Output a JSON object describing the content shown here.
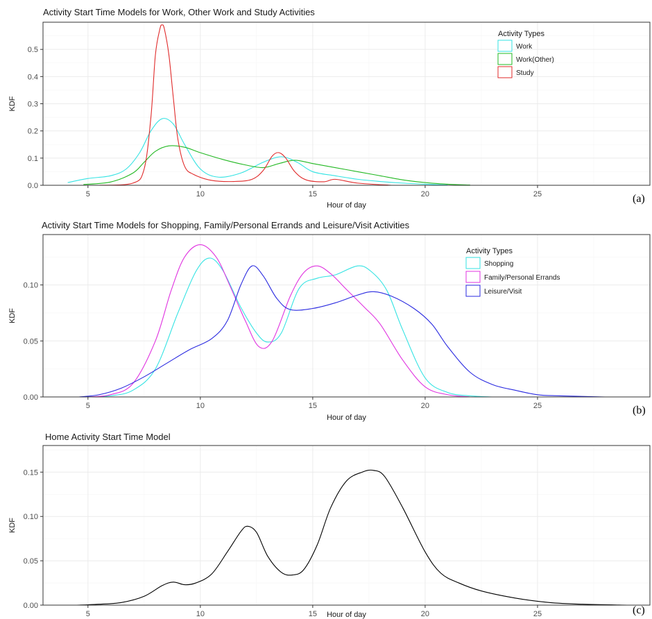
{
  "chart_data": [
    {
      "type": "line",
      "panel_tag": "(a)",
      "title": "Activity Start Time Models for Work, Other Work and Study Activities",
      "xlabel": "Hour of day",
      "ylabel": "KDF",
      "xlim": [
        3,
        30
      ],
      "ylim": [
        0,
        0.6
      ],
      "xticks": [
        5,
        10,
        15,
        20,
        25
      ],
      "yticks": [
        0.0,
        0.1,
        0.2,
        0.3,
        0.4,
        0.5
      ],
      "ytick_labels": [
        "0.0",
        "0.1",
        "0.2",
        "0.3",
        "0.4",
        "0.5"
      ],
      "grid": true,
      "legend": {
        "title": "Activity Types",
        "position": "top-right"
      },
      "series": [
        {
          "name": "Work",
          "color": "#33e3e3",
          "x": [
            4.1,
            5,
            6,
            6.7,
            7.3,
            7.8,
            8.3,
            8.8,
            9.3,
            10,
            10.8,
            11.8,
            12.8,
            13.6,
            14.3,
            15,
            16,
            17,
            18,
            19,
            20,
            21
          ],
          "y": [
            0.01,
            0.025,
            0.035,
            0.06,
            0.12,
            0.2,
            0.245,
            0.225,
            0.15,
            0.06,
            0.03,
            0.045,
            0.085,
            0.105,
            0.085,
            0.05,
            0.035,
            0.022,
            0.014,
            0.008,
            0.004,
            0.001
          ]
        },
        {
          "name": "Work(Other)",
          "color": "#22b822",
          "x": [
            4.8,
            6,
            7,
            7.5,
            8,
            8.6,
            9.3,
            10,
            11,
            12,
            12.8,
            13.5,
            14.2,
            15,
            16,
            17,
            18,
            19,
            20,
            21,
            22
          ],
          "y": [
            0.003,
            0.012,
            0.045,
            0.085,
            0.125,
            0.145,
            0.14,
            0.12,
            0.095,
            0.075,
            0.065,
            0.08,
            0.092,
            0.08,
            0.065,
            0.05,
            0.035,
            0.02,
            0.01,
            0.004,
            0.001
          ]
        },
        {
          "name": "Study",
          "color": "#e02a2a",
          "x": [
            5.5,
            7,
            7.5,
            7.8,
            8,
            8.2,
            8.3,
            8.4,
            8.6,
            8.8,
            9,
            9.3,
            9.7,
            10.5,
            11.5,
            12.3,
            12.8,
            13.2,
            13.5,
            13.8,
            14.2,
            14.7,
            15.5,
            16,
            17,
            18.5
          ],
          "y": [
            0.0,
            0.008,
            0.06,
            0.25,
            0.48,
            0.575,
            0.59,
            0.575,
            0.48,
            0.32,
            0.17,
            0.07,
            0.04,
            0.018,
            0.014,
            0.022,
            0.055,
            0.108,
            0.12,
            0.1,
            0.05,
            0.02,
            0.013,
            0.022,
            0.008,
            0.0
          ]
        }
      ]
    },
    {
      "type": "line",
      "panel_tag": "(b)",
      "title": "Activity Start Time Models for Shopping, Family/Personal Errands and Leisure/Visit Activities",
      "xlabel": "Hour of day",
      "ylabel": "KDF",
      "xlim": [
        3,
        30
      ],
      "ylim": [
        0,
        0.145
      ],
      "xticks": [
        5,
        10,
        15,
        20,
        25
      ],
      "yticks": [
        0.0,
        0.05,
        0.1
      ],
      "ytick_labels": [
        "0.00",
        "0.05",
        "0.10"
      ],
      "grid": true,
      "legend": {
        "title": "Activity Types",
        "position": "top-right"
      },
      "series": [
        {
          "name": "Shopping",
          "color": "#33e3e3",
          "x": [
            5,
            6,
            7,
            8,
            9,
            9.8,
            10.4,
            11,
            11.8,
            12.5,
            13,
            13.6,
            14.4,
            15.2,
            16,
            17,
            17.6,
            18.3,
            19,
            20,
            21,
            22,
            23
          ],
          "y": [
            0.0,
            0.001,
            0.006,
            0.025,
            0.075,
            0.112,
            0.124,
            0.113,
            0.08,
            0.057,
            0.049,
            0.057,
            0.097,
            0.106,
            0.109,
            0.117,
            0.112,
            0.095,
            0.06,
            0.017,
            0.004,
            0.001,
            0.0
          ]
        },
        {
          "name": "Family/Personal Errands",
          "color": "#e033e0",
          "x": [
            5,
            6,
            7,
            8,
            8.7,
            9.3,
            10,
            10.7,
            11.3,
            12,
            12.6,
            13.2,
            14,
            14.6,
            15.2,
            15.8,
            16.5,
            17.3,
            18,
            19,
            20,
            21,
            22
          ],
          "y": [
            0.0,
            0.002,
            0.012,
            0.05,
            0.095,
            0.125,
            0.136,
            0.125,
            0.1,
            0.068,
            0.045,
            0.05,
            0.09,
            0.111,
            0.117,
            0.11,
            0.096,
            0.08,
            0.065,
            0.033,
            0.009,
            0.002,
            0.0
          ]
        },
        {
          "name": "Leisure/Visit",
          "color": "#2a2ae0",
          "x": [
            4.6,
            5.5,
            6.5,
            7.5,
            8.5,
            9.5,
            10.5,
            11.2,
            11.8,
            12.3,
            12.8,
            13.4,
            14,
            15,
            16,
            17,
            17.7,
            18.5,
            19.5,
            20.3,
            21,
            22,
            23,
            24,
            25,
            26,
            28
          ],
          "y": [
            0.0,
            0.002,
            0.008,
            0.018,
            0.03,
            0.042,
            0.052,
            0.068,
            0.1,
            0.117,
            0.108,
            0.088,
            0.078,
            0.079,
            0.084,
            0.091,
            0.094,
            0.09,
            0.079,
            0.065,
            0.045,
            0.022,
            0.011,
            0.006,
            0.002,
            0.001,
            0.0
          ]
        }
      ]
    },
    {
      "type": "line",
      "panel_tag": "(c)",
      "title": "Home Activity Start Time Model",
      "xlabel": "Hour of day",
      "ylabel": "KDF",
      "xlim": [
        3,
        30
      ],
      "ylim": [
        0,
        0.18
      ],
      "xticks": [
        5,
        10,
        15,
        20,
        25
      ],
      "yticks": [
        0.0,
        0.05,
        0.1,
        0.15
      ],
      "ytick_labels": [
        "0.00",
        "0.05",
        "0.10",
        "0.15"
      ],
      "grid": true,
      "series": [
        {
          "color": "#000000",
          "x": [
            4.5,
            5.5,
            6.5,
            7.5,
            8.3,
            8.8,
            9.3,
            9.8,
            10.5,
            11.2,
            11.8,
            12.1,
            12.5,
            13,
            13.6,
            14.1,
            14.6,
            15.2,
            15.8,
            16.5,
            17.2,
            17.7,
            18.2,
            19,
            20,
            20.7,
            21.5,
            22.5,
            24,
            25.5,
            27,
            29
          ],
          "y": [
            0.0,
            0.001,
            0.003,
            0.01,
            0.022,
            0.026,
            0.023,
            0.025,
            0.035,
            0.06,
            0.083,
            0.089,
            0.082,
            0.055,
            0.037,
            0.034,
            0.04,
            0.068,
            0.11,
            0.14,
            0.15,
            0.152,
            0.145,
            0.11,
            0.06,
            0.036,
            0.025,
            0.016,
            0.008,
            0.003,
            0.001,
            0.0
          ]
        }
      ]
    }
  ]
}
